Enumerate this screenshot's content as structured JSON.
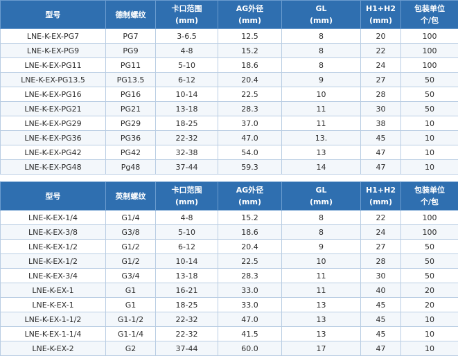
{
  "table_pg": {
    "headers": {
      "model": "型号",
      "thread": "德制螺纹",
      "clamp_range": "卡口范围",
      "clamp_range_unit": "(mm)",
      "ag_od": "AG外径",
      "ag_od_unit": "(mm)",
      "gl": "GL",
      "gl_unit": "(mm)",
      "h1h2": "H1+H2",
      "h1h2_unit": "(mm)",
      "pack": "包装单位",
      "pack_unit": "个/包"
    },
    "rows": [
      [
        "LNE-K-EX-PG7",
        "PG7",
        "3-6.5",
        "12.5",
        "8",
        "20",
        "100"
      ],
      [
        "LNE-K-EX-PG9",
        "PG9",
        "4-8",
        "15.2",
        "8",
        "22",
        "100"
      ],
      [
        "LNE-K-EX-PG11",
        "PG11",
        "5-10",
        "18.6",
        "8",
        "24",
        "100"
      ],
      [
        "LNE-K-EX-PG13.5",
        "PG13.5",
        "6-12",
        "20.4",
        "9",
        "27",
        "50"
      ],
      [
        "LNE-K-EX-PG16",
        "PG16",
        "10-14",
        "22.5",
        "10",
        "28",
        "50"
      ],
      [
        "LNE-K-EX-PG21",
        "PG21",
        "13-18",
        "28.3",
        "11",
        "30",
        "50"
      ],
      [
        "LNE-K-EX-PG29",
        "PG29",
        "18-25",
        "37.0",
        "11",
        "38",
        "10"
      ],
      [
        "LNE-K-EX-PG36",
        "PG36",
        "22-32",
        "47.0",
        "13.",
        "45",
        "10"
      ],
      [
        "LNE-K-EX-PG42",
        "PG42",
        "32-38",
        "54.0",
        "13",
        "47",
        "10"
      ],
      [
        "LNE-K-EX-PG48",
        "Pg48",
        "37-44",
        "59.3",
        "14",
        "47",
        "10"
      ]
    ]
  },
  "table_g": {
    "headers": {
      "model": "型号",
      "thread": "英制螺纹",
      "clamp_range": "卡口范围",
      "clamp_range_unit": "(mm)",
      "ag_od": "AG外径",
      "ag_od_unit": "(mm)",
      "gl": "GL",
      "gl_unit": "(mm)",
      "h1h2": "H1+H2",
      "h1h2_unit": "(mm)",
      "pack": "包装单位",
      "pack_unit": "个/包"
    },
    "rows": [
      [
        "LNE-K-EX-1/4",
        "G1/4",
        "4-8",
        "15.2",
        "8",
        "22",
        "100"
      ],
      [
        "LNE-K-EX-3/8",
        "G3/8",
        "5-10",
        "18.6",
        "8",
        "24",
        "100"
      ],
      [
        "LNE-K-EX-1/2",
        "G1/2",
        "6-12",
        "20.4",
        "9",
        "27",
        "50"
      ],
      [
        "LNE-K-EX-1/2",
        "G1/2",
        "10-14",
        "22.5",
        "10",
        "28",
        "50"
      ],
      [
        "LNE-K-EX-3/4",
        "G3/4",
        "13-18",
        "28.3",
        "11",
        "30",
        "50"
      ],
      [
        "LNE-K-EX-1",
        "G1",
        "16-21",
        "33.0",
        "11",
        "40",
        "20"
      ],
      [
        "LNE-K-EX-1",
        "G1",
        "18-25",
        "33.0",
        "13",
        "45",
        "20"
      ],
      [
        "LNE-K-EX-1-1/2",
        "G1-1/2",
        "22-32",
        "47.0",
        "13",
        "45",
        "10"
      ],
      [
        "LNE-K-EX-1-1/4",
        "G1-1/4",
        "22-32",
        "41.5",
        "13",
        "45",
        "10"
      ],
      [
        "LNE-K-EX-2",
        "G2",
        "37-44",
        "60.0",
        "17",
        "47",
        "10"
      ]
    ]
  },
  "colors": {
    "header_bg": "#2f6fb0",
    "header_text": "#ffffff",
    "border": "#b9cde3",
    "alt_row": "#f3f7fb"
  }
}
